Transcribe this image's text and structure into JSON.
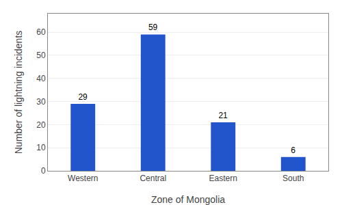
{
  "chart_data": {
    "type": "bar",
    "xlabel": "Zone of Mongolia",
    "ylabel": "Number of lightning incidents",
    "categories": [
      "Western",
      "Central",
      "Eastern",
      "South"
    ],
    "values": [
      29,
      59,
      21,
      6
    ],
    "color": "#2255cc",
    "ylim": [
      0,
      68
    ],
    "yticks": [
      0,
      10,
      20,
      30,
      40,
      50,
      60
    ],
    "grid": true,
    "data_labels": true
  }
}
